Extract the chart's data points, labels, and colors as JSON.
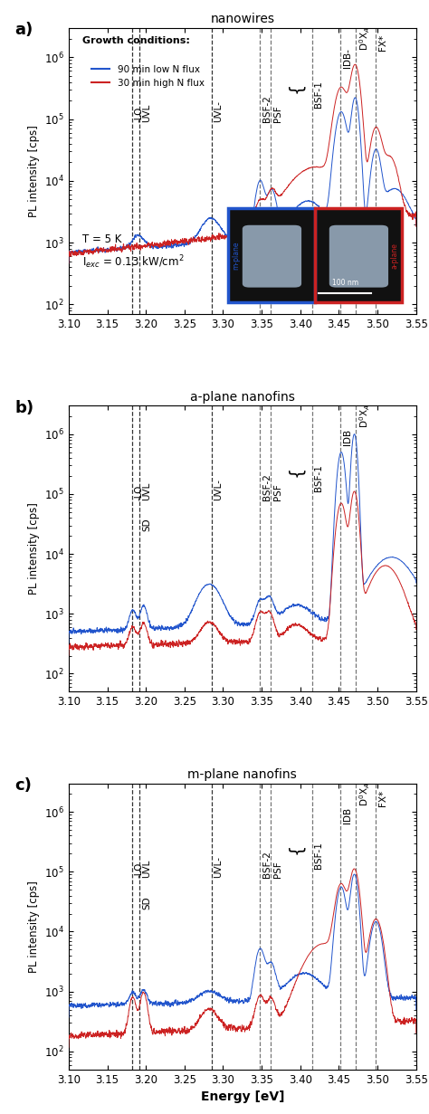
{
  "panels": [
    {
      "label": "a)",
      "title": "nanowires",
      "ylim": [
        70,
        3000000
      ],
      "show_sd": false,
      "has_fx": true,
      "vlines_black": [
        3.182,
        3.192,
        3.285
      ],
      "vlines_gray": [
        3.348,
        3.362,
        3.415,
        3.452,
        3.472,
        3.498
      ],
      "bsf1_bracket": true
    },
    {
      "label": "b)",
      "title": "a-plane nanofins",
      "ylim": [
        50,
        3000000
      ],
      "show_sd": true,
      "has_fx": false,
      "vlines_black": [
        3.182,
        3.192,
        3.285
      ],
      "vlines_gray": [
        3.348,
        3.362,
        3.415,
        3.452,
        3.472
      ],
      "bsf1_bracket": true
    },
    {
      "label": "c)",
      "title": "m-plane nanofins",
      "ylim": [
        50,
        3000000
      ],
      "show_sd": true,
      "has_fx": true,
      "vlines_black": [
        3.182,
        3.192,
        3.285
      ],
      "vlines_gray": [
        3.348,
        3.362,
        3.415,
        3.452,
        3.472,
        3.498
      ],
      "bsf1_bracket": true
    }
  ],
  "blue_color": "#2255cc",
  "red_color": "#cc2222",
  "xlabel": "Energy [eV]",
  "ylabel": "PL intensity [cps]",
  "legend_line1": "90 min low N flux",
  "legend_line2": "30 min high N flux",
  "legend_title": "Growth conditions:",
  "T_label": "T = 5 K",
  "I_label": "I$_{exc}$ = 0.13 kW/cm$^2$",
  "xlim": [
    3.1,
    3.55
  ],
  "xticks": [
    3.1,
    3.15,
    3.2,
    3.25,
    3.3,
    3.35,
    3.4,
    3.45,
    3.5,
    3.55
  ]
}
